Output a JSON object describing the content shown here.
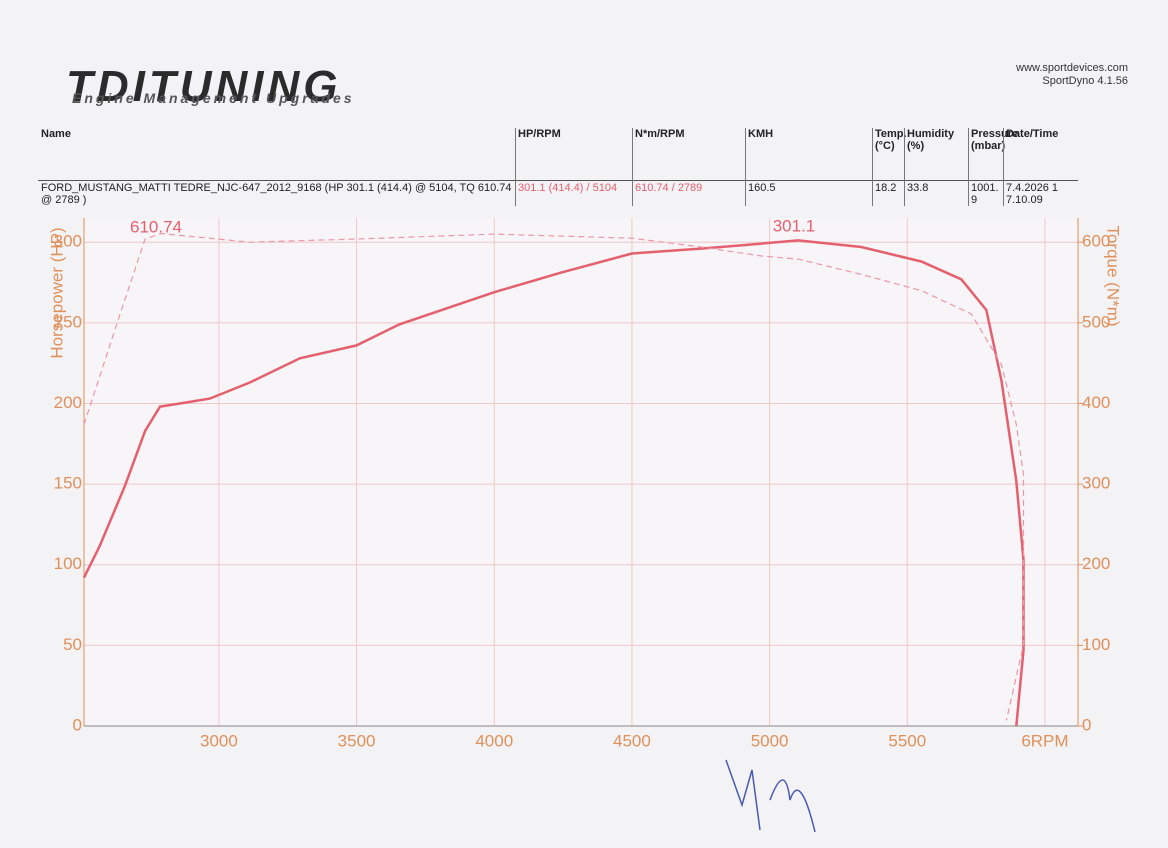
{
  "header": {
    "logo": "TDITUNING",
    "logo_subtitle": "Engine Management Upgrades",
    "website": "www.sportdevices.com",
    "software": "SportDyno 4.1.56"
  },
  "table": {
    "columns": [
      "Name",
      "HP/RPM",
      "N*m/RPM",
      "KMH",
      "Temp. (°C)",
      "Humidity (%)",
      "Pressure (mbar)",
      "Date/Time"
    ],
    "rows": [
      [
        "FORD_MUSTANG_MATTI TEDRE_NJC-647_2012_9168 (HP 301.1 (414.4) @ 5104, TQ 610.74 @ 2789 )",
        "301.1 (414.4) / 5104",
        "610.74 / 2789",
        "160.5",
        "18.2",
        "33.8",
        "1001.9",
        "7.4.2026 17.10.09"
      ]
    ]
  },
  "chart_data": {
    "type": "line",
    "ylabel": "Horsepower (HP)",
    "y2label": "Torque (N*m)",
    "xlim": [
      2510,
      6120
    ],
    "xticks": [
      3000,
      3500,
      4000,
      4500,
      5000,
      5500,
      {
        "value": 6000,
        "label": "6RPM"
      }
    ],
    "ylim": [
      0,
      315
    ],
    "yticks": [
      0,
      50,
      100,
      150,
      200,
      250,
      300
    ],
    "y2lim": [
      0,
      630
    ],
    "y2ticks": [
      0,
      100,
      200,
      300,
      400,
      500,
      600
    ],
    "grid": true,
    "annotations": [
      "610.74",
      "301.1"
    ],
    "series": [
      {
        "color": "#e4606e",
        "line_style": "solid",
        "axis": "y",
        "x": [
          2510,
          2568,
          2659,
          2732,
          2786,
          2858,
          2967,
          3112,
          3294,
          3500,
          3655,
          4000,
          4240,
          4500,
          4750,
          4895,
          5104,
          5333,
          5551,
          5696,
          5787,
          5842,
          5896,
          5922,
          5922,
          5896
        ],
        "values": [
          92,
          112,
          149,
          183,
          198,
          200,
          203,
          213,
          228,
          236,
          249,
          269,
          281,
          293,
          296,
          298,
          301.1,
          297,
          288,
          277,
          258,
          214,
          152,
          103,
          47,
          0
        ]
      },
      {
        "color": "#eb98a6",
        "line_style": "dashed",
        "axis": "y2",
        "x": [
          2510,
          2641,
          2732,
          2789,
          2934,
          3112,
          3500,
          4000,
          4500,
          4750,
          4968,
          5104,
          5333,
          5551,
          5733,
          5842,
          5896,
          5922,
          5922,
          5860
        ],
        "values": [
          374,
          511,
          604,
          610.74,
          606,
          600,
          604,
          610,
          605,
          594,
          583,
          579,
          560,
          540,
          511,
          448,
          374,
          312,
          101,
          7
        ]
      }
    ]
  }
}
